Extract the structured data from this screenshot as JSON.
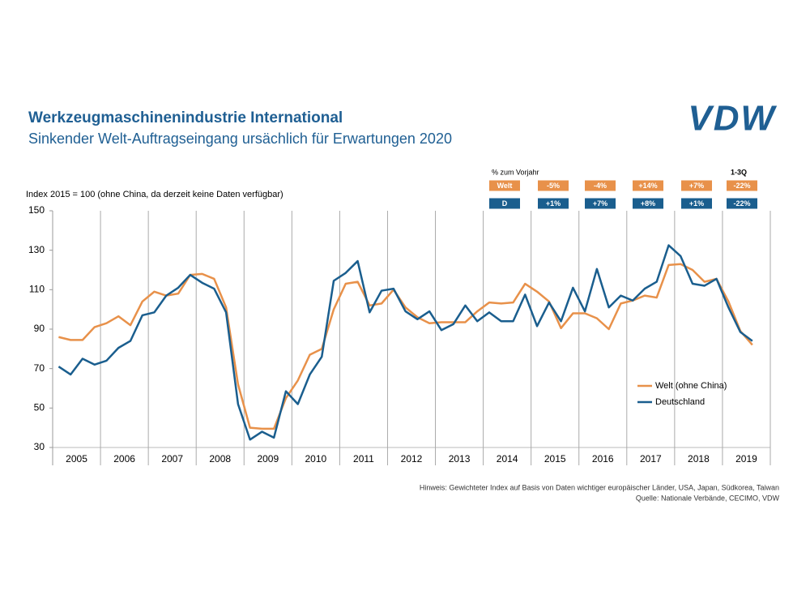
{
  "chart_data": {
    "type": "line",
    "title": "Werkzeugmaschinenindustrie International",
    "subtitle": "Sinkender Welt-Auftragseingang ursächlich für Erwartungen 2020",
    "logo": "VDW",
    "y_label": "Index 2015 = 100 (ohne China, da derzeit keine Daten verfügbar)",
    "categories": [
      null,
      "2005",
      null,
      null,
      null,
      "2006",
      null,
      null,
      null,
      "2007",
      null,
      null,
      null,
      "2008",
      null,
      null,
      null,
      "2009",
      null,
      null,
      null,
      "2010",
      null,
      null,
      null,
      "2011",
      null,
      null,
      null,
      "2012",
      null,
      null,
      null,
      "2013",
      null,
      null,
      null,
      "2014",
      null,
      null,
      null,
      "2015",
      null,
      null,
      null,
      "2016",
      null,
      null,
      null,
      "2017",
      null,
      null,
      null,
      "2018",
      null,
      null,
      null,
      "2019",
      null
    ],
    "series": [
      {
        "name": "Welt (ohne China)",
        "color": "#e8914a",
        "values": [
          86,
          84.5,
          84.5,
          91,
          93,
          96.5,
          92,
          104,
          109,
          107,
          108,
          117.5,
          118,
          115.5,
          101,
          62,
          40,
          39.5,
          39.5,
          55,
          64,
          77,
          80,
          100,
          113,
          114,
          102,
          103,
          110,
          101,
          96,
          93,
          93.5,
          93.5,
          93.5,
          99,
          103.5,
          103,
          103.5,
          113,
          109,
          104,
          90.5,
          98,
          98,
          95.5,
          90,
          103,
          104.5,
          107,
          106,
          122.5,
          123,
          120,
          114,
          115.5,
          104,
          89,
          82
        ]
      },
      {
        "name": "Deutschland",
        "color": "#1a5e8e",
        "values": [
          71,
          67,
          75,
          72,
          74,
          80.5,
          84,
          97,
          98.5,
          107,
          111,
          117.5,
          113.5,
          110.5,
          98.5,
          52,
          34,
          38,
          35,
          58.5,
          52,
          67,
          76,
          114.5,
          118.5,
          124.5,
          98.5,
          109.5,
          110.5,
          99,
          95,
          99,
          89.5,
          92.5,
          102,
          94,
          98.5,
          94,
          94,
          107.5,
          91.5,
          103.5,
          94,
          111,
          99,
          120.5,
          101,
          107,
          104.5,
          110.5,
          114,
          132.5,
          127,
          113,
          112,
          115.5,
          101,
          88.5,
          84
        ]
      }
    ],
    "ylim": [
      30,
      150
    ],
    "yticks": [
      30,
      50,
      70,
      90,
      110,
      130,
      150
    ],
    "legend": "lower-right",
    "change_table": {
      "header": "% zum Vorjahr",
      "period_label": "1-3Q",
      "rows": [
        {
          "label": "Welt",
          "values": [
            "-5%",
            "-4%",
            "+14%",
            "+7%",
            "-22%"
          ]
        },
        {
          "label": "D",
          "values": [
            "+1%",
            "+7%",
            "+8%",
            "+1%",
            "-22%"
          ]
        }
      ]
    },
    "notes": [
      "Hinweis: Gewichteter Index auf Basis von Daten wichtiger europäischer Länder, USA, Japan, Südkorea, Taiwan",
      "Quelle: Nationale Verbände, CECIMO, VDW"
    ]
  }
}
